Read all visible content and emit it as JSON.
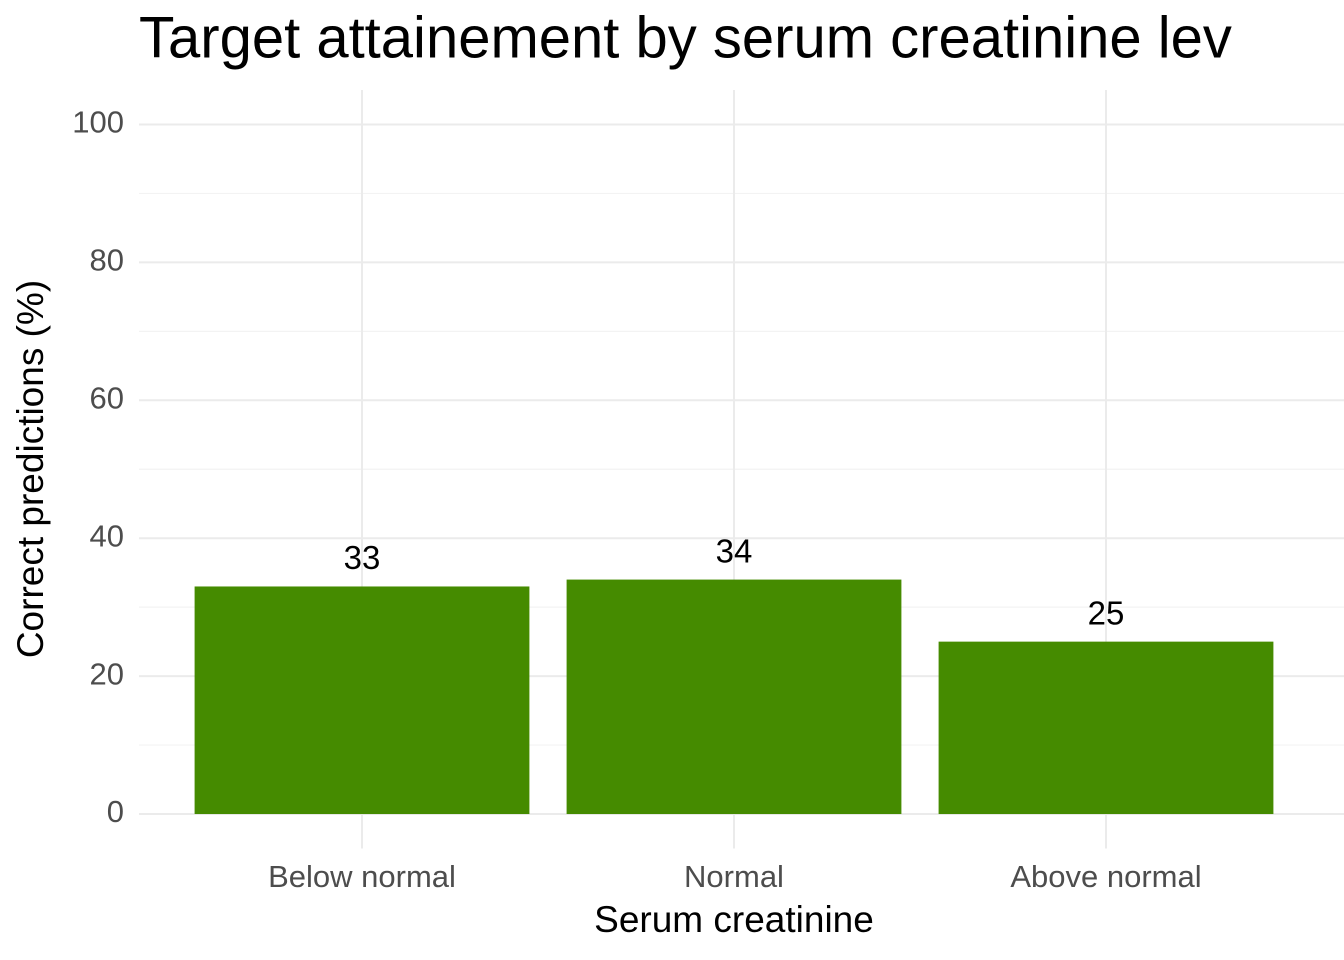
{
  "chart_data": {
    "type": "bar",
    "title": "Target attainement by serum creatinine lev",
    "x_label": "Serum creatinine",
    "y_label": "Correct predictions (%)",
    "categories": [
      "Below normal",
      "Normal",
      "Above normal"
    ],
    "values": [
      33,
      34,
      25
    ],
    "color": "#458b00",
    "ylim": [
      -5,
      105
    ],
    "yticks": [
      0,
      20,
      40,
      60,
      80,
      100
    ],
    "grid": true
  }
}
